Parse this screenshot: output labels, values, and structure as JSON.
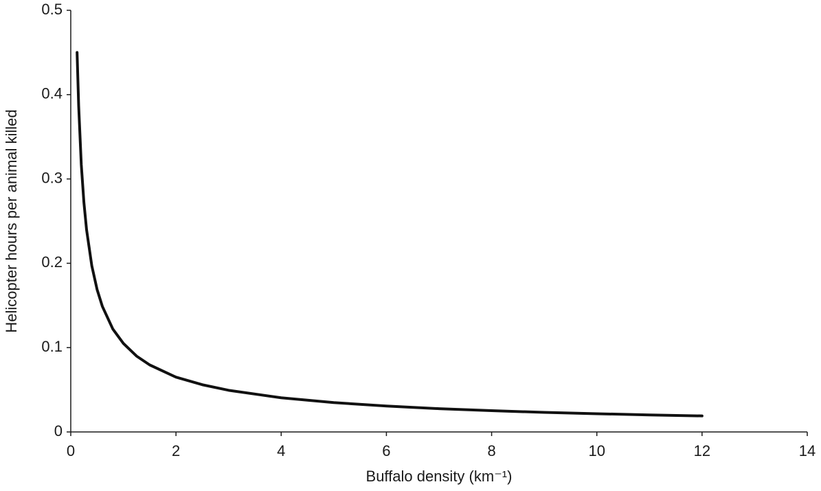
{
  "chart_data": {
    "type": "line",
    "x_label": "Buffalo density (km⁻¹)",
    "y_label": "Helicopter hours per animal killed",
    "x": [
      0.12,
      0.15,
      0.2,
      0.25,
      0.3,
      0.4,
      0.5,
      0.6,
      0.8,
      1,
      1.25,
      1.5,
      2,
      2.5,
      3,
      4,
      5,
      6,
      7,
      8,
      9,
      10,
      11,
      12
    ],
    "series": [
      {
        "color": "#111111",
        "values": [
          0.45,
          0.387,
          0.317,
          0.272,
          0.24,
          0.197,
          0.169,
          0.149,
          0.122,
          0.105,
          0.09,
          0.0795,
          0.065,
          0.056,
          0.0494,
          0.0405,
          0.0348,
          0.0307,
          0.0276,
          0.0252,
          0.0232,
          0.0216,
          0.0202,
          0.019
        ]
      }
    ],
    "xlim": [
      0,
      14
    ],
    "xticks": [
      0,
      2,
      4,
      6,
      8,
      10,
      12,
      14
    ],
    "ylim": [
      0,
      0.5
    ],
    "yticks": [
      0,
      0.1,
      0.2,
      0.3,
      0.4,
      0.5
    ],
    "grid": false
  }
}
